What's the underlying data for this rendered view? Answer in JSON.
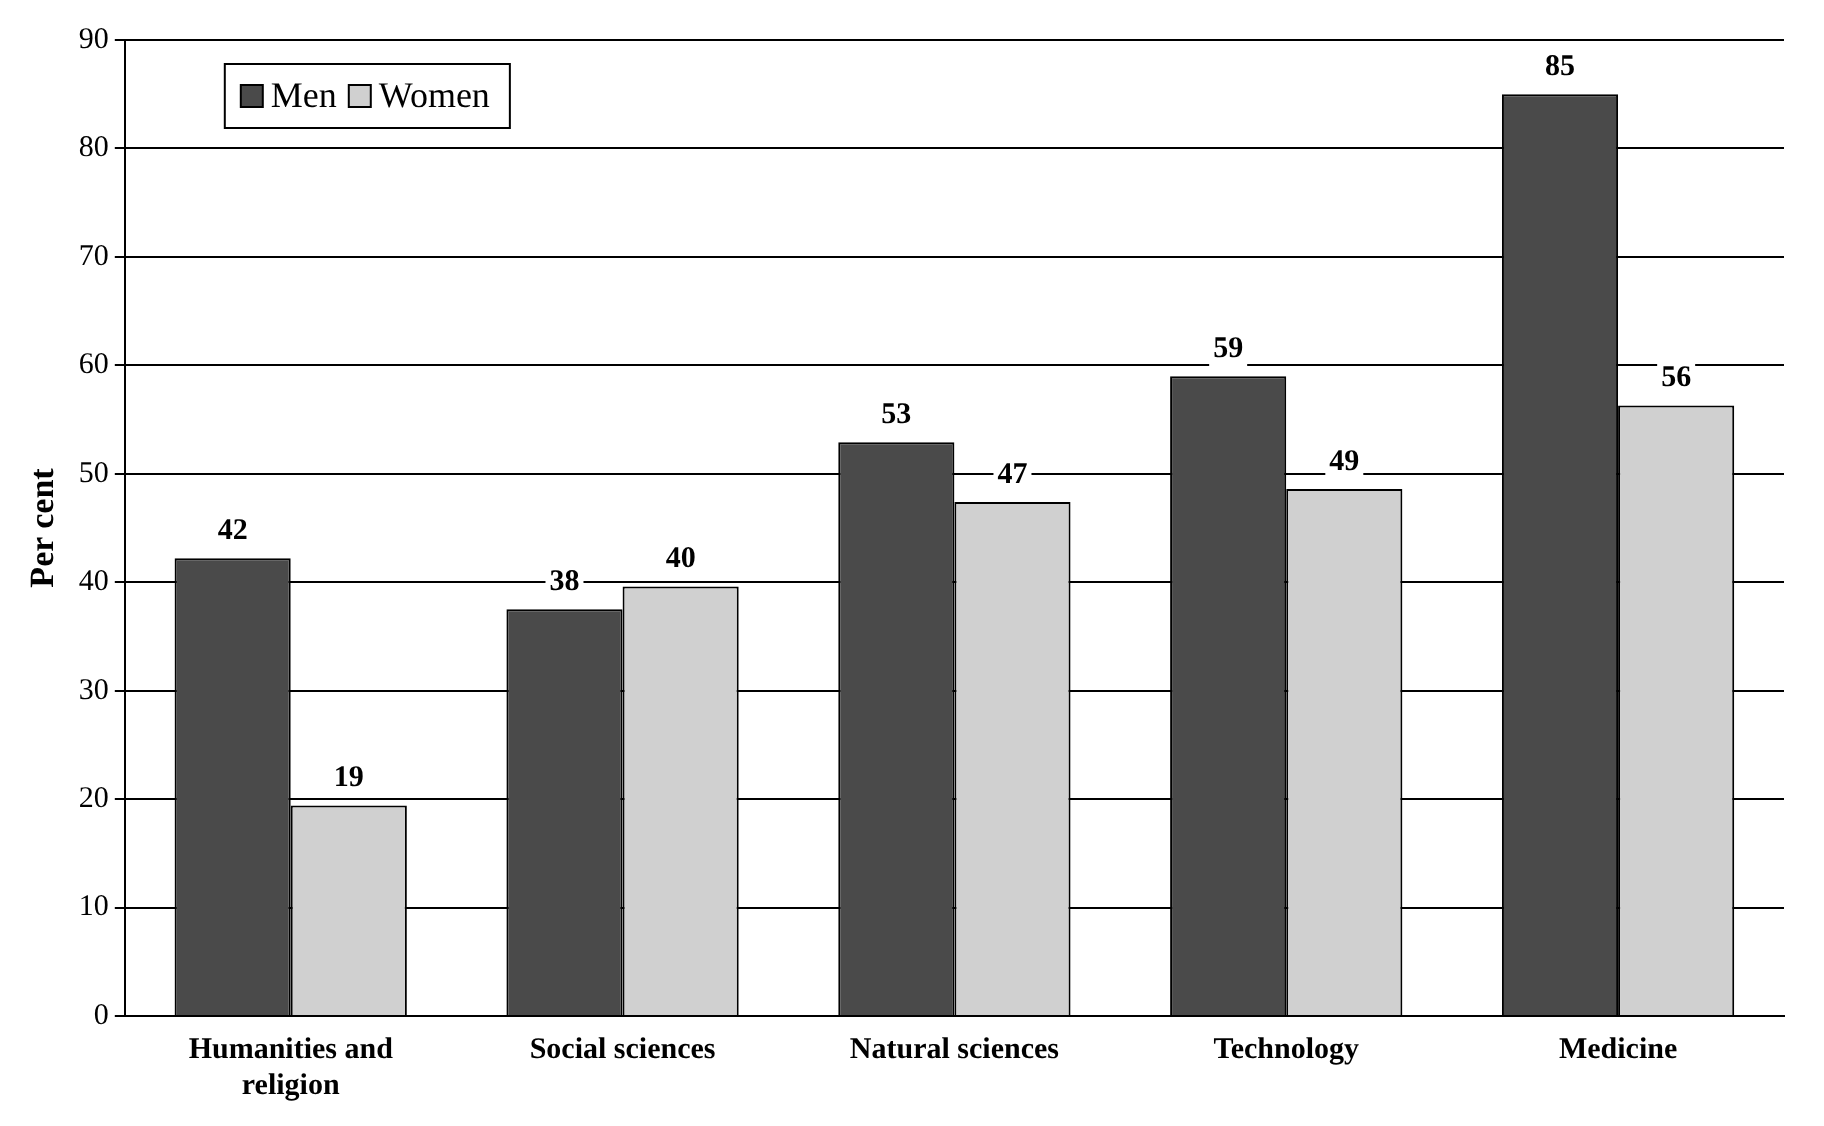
{
  "chart_data": {
    "type": "bar",
    "ylabel": "Per cent",
    "categories": [
      "Humanities and religion",
      "Social sciences",
      "Natural sciences",
      "Technology",
      "Medicine"
    ],
    "series": [
      {
        "name": "Men",
        "color": "#4a4a4a",
        "values": [
          42.2,
          37.5,
          52.9,
          59.0,
          85.0
        ],
        "value_labels": [
          "42",
          "38",
          "53",
          "59",
          "85"
        ]
      },
      {
        "name": "Women",
        "color": "#d0d0d0",
        "values": [
          19.4,
          39.6,
          47.4,
          48.6,
          56.3
        ],
        "value_labels": [
          "19",
          "40",
          "47",
          "49",
          "56"
        ]
      }
    ],
    "ylim": [
      0,
      90
    ],
    "yticks": [
      0,
      10,
      20,
      30,
      40,
      50,
      60,
      70,
      80,
      90
    ],
    "grid": "y",
    "legend": "top left"
  }
}
